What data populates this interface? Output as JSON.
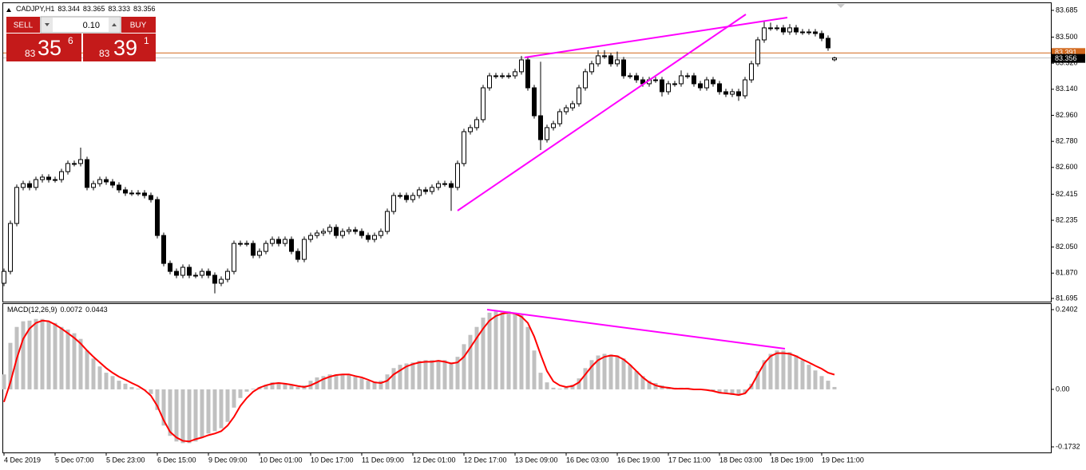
{
  "chart_data": [
    {
      "type": "candlestick",
      "title": "CADJPY,H1",
      "series": [
        {
          "color": "#000000",
          "open": [
            81.8,
            81.882,
            82.213,
            82.462,
            82.488,
            82.462,
            82.516,
            82.533,
            82.516,
            82.516,
            82.571,
            82.627,
            82.627,
            82.654,
            82.462,
            82.488,
            82.516,
            82.5,
            82.478,
            82.445,
            82.423,
            82.423,
            82.423,
            82.406,
            82.378,
            82.13,
            81.937,
            81.882,
            81.855,
            81.91,
            81.855,
            81.855,
            81.882,
            81.855,
            81.8,
            81.827,
            81.882,
            82.075,
            82.075,
            82.075,
            81.993,
            82.02,
            82.075,
            82.103,
            82.075,
            82.103,
            82.02,
            81.965,
            82.103,
            82.13,
            82.147,
            82.158,
            82.186,
            82.13,
            82.158,
            82.169,
            82.158,
            82.13,
            82.103,
            82.13,
            82.158,
            82.296,
            82.406,
            82.406,
            82.378,
            82.406,
            82.445,
            82.434,
            82.462,
            82.488,
            82.488,
            82.462,
            82.627,
            82.847,
            82.875,
            82.93,
            83.15,
            83.233,
            83.233,
            83.233,
            83.233,
            83.261,
            83.343,
            83.15,
            82.957,
            82.792,
            82.875,
            82.902,
            82.985,
            83.012,
            83.04,
            83.15,
            83.261,
            83.316,
            83.371,
            83.371,
            83.316,
            83.343,
            83.233,
            83.233,
            83.205,
            83.178,
            83.205,
            83.205,
            83.123,
            83.178,
            83.178,
            83.233,
            83.233,
            83.178,
            83.15,
            83.205,
            83.178,
            83.123,
            83.106,
            83.123,
            83.095,
            83.205,
            83.316,
            83.481,
            83.564,
            83.564,
            83.564,
            83.536,
            83.564,
            83.536,
            83.536,
            83.536,
            83.525,
            83.492,
            83.344
          ],
          "high": [
            81.902,
            82.233,
            82.482,
            82.508,
            82.508,
            82.536,
            82.553,
            82.553,
            82.536,
            82.591,
            82.647,
            82.647,
            82.737,
            82.674,
            82.508,
            82.536,
            82.536,
            82.52,
            82.498,
            82.465,
            82.443,
            82.443,
            82.443,
            82.426,
            82.398,
            82.15,
            81.957,
            81.902,
            81.93,
            81.93,
            81.875,
            81.902,
            81.902,
            81.875,
            81.847,
            81.902,
            82.095,
            82.095,
            82.095,
            82.095,
            82.04,
            82.095,
            82.123,
            82.123,
            82.123,
            82.123,
            82.04,
            82.123,
            82.15,
            82.167,
            82.178,
            82.206,
            82.206,
            82.178,
            82.189,
            82.189,
            82.178,
            82.15,
            82.15,
            82.178,
            82.316,
            82.426,
            82.426,
            82.426,
            82.426,
            82.465,
            82.465,
            82.482,
            82.508,
            82.508,
            82.508,
            82.647,
            82.867,
            82.895,
            82.95,
            83.17,
            83.253,
            83.253,
            83.253,
            83.253,
            83.281,
            83.37,
            83.363,
            83.17,
            83.33,
            82.895,
            82.922,
            83.005,
            83.032,
            83.06,
            83.17,
            83.281,
            83.336,
            83.41,
            83.41,
            83.391,
            83.4,
            83.363,
            83.253,
            83.253,
            83.225,
            83.225,
            83.225,
            83.225,
            83.198,
            83.198,
            83.27,
            83.253,
            83.253,
            83.198,
            83.225,
            83.225,
            83.198,
            83.143,
            83.143,
            83.143,
            83.225,
            83.336,
            83.501,
            83.61,
            83.6,
            83.584,
            83.584,
            83.59,
            83.584,
            83.556,
            83.556,
            83.556,
            83.545,
            83.512,
            83.365
          ],
          "low": [
            81.78,
            81.862,
            82.193,
            82.442,
            82.442,
            82.442,
            82.496,
            82.496,
            82.496,
            82.496,
            82.551,
            82.607,
            82.607,
            82.442,
            82.442,
            82.468,
            82.48,
            82.458,
            82.425,
            82.403,
            82.403,
            82.403,
            82.386,
            82.358,
            82.11,
            81.917,
            81.862,
            81.835,
            81.835,
            81.835,
            81.835,
            81.835,
            81.835,
            81.73,
            81.78,
            81.807,
            81.862,
            82.055,
            82.055,
            81.973,
            81.973,
            82.0,
            82.055,
            82.055,
            82.055,
            82.0,
            81.945,
            81.945,
            82.083,
            82.11,
            82.127,
            82.138,
            82.11,
            82.11,
            82.138,
            82.138,
            82.11,
            82.083,
            82.083,
            82.11,
            82.138,
            82.276,
            82.386,
            82.358,
            82.358,
            82.386,
            82.414,
            82.414,
            82.442,
            82.468,
            82.3,
            82.442,
            82.607,
            82.827,
            82.855,
            82.91,
            83.13,
            83.213,
            83.213,
            83.213,
            83.213,
            83.241,
            83.13,
            82.937,
            82.72,
            82.772,
            82.855,
            82.882,
            82.965,
            82.992,
            83.02,
            83.13,
            83.241,
            83.296,
            83.351,
            83.296,
            83.296,
            83.213,
            83.213,
            83.185,
            83.158,
            83.158,
            83.185,
            83.09,
            83.103,
            83.158,
            83.158,
            83.213,
            83.158,
            83.13,
            83.13,
            83.158,
            83.103,
            83.086,
            83.086,
            83.06,
            83.075,
            83.185,
            83.296,
            83.461,
            83.544,
            83.544,
            83.516,
            83.516,
            83.516,
            83.516,
            83.516,
            83.505,
            83.472,
            83.406,
            83.333
          ],
          "close": [
            81.882,
            82.213,
            82.462,
            82.488,
            82.462,
            82.516,
            82.533,
            82.516,
            82.516,
            82.571,
            82.627,
            82.627,
            82.654,
            82.462,
            82.488,
            82.516,
            82.5,
            82.478,
            82.445,
            82.423,
            82.423,
            82.423,
            82.406,
            82.378,
            82.13,
            81.937,
            81.882,
            81.855,
            81.91,
            81.855,
            81.855,
            81.882,
            81.855,
            81.8,
            81.827,
            81.882,
            82.075,
            82.075,
            82.075,
            81.993,
            82.02,
            82.075,
            82.103,
            82.075,
            82.103,
            82.02,
            81.965,
            82.103,
            82.13,
            82.147,
            82.158,
            82.186,
            82.13,
            82.158,
            82.169,
            82.158,
            82.13,
            82.103,
            82.13,
            82.158,
            82.296,
            82.406,
            82.406,
            82.378,
            82.406,
            82.445,
            82.434,
            82.462,
            82.488,
            82.488,
            82.462,
            82.627,
            82.847,
            82.875,
            82.93,
            83.15,
            83.233,
            83.233,
            83.233,
            83.233,
            83.261,
            83.343,
            83.15,
            82.957,
            82.792,
            82.875,
            82.902,
            82.985,
            83.012,
            83.04,
            83.15,
            83.261,
            83.316,
            83.371,
            83.371,
            83.316,
            83.343,
            83.233,
            83.233,
            83.205,
            83.178,
            83.205,
            83.205,
            83.123,
            83.178,
            83.178,
            83.233,
            83.233,
            83.178,
            83.15,
            83.205,
            83.178,
            83.123,
            83.106,
            83.123,
            83.095,
            83.205,
            83.316,
            83.481,
            83.564,
            83.564,
            83.564,
            83.536,
            83.564,
            83.536,
            83.536,
            83.536,
            83.525,
            83.492,
            83.426,
            83.356
          ]
        }
      ],
      "ask_line": {
        "value": 83.391,
        "color": "#d2691e"
      },
      "bid_line_color": "#c0c0c0",
      "ylim": [
        81.673,
        83.74
      ],
      "yticks": [
        83.685,
        {
          "value": 83.5,
          "label": "83.500"
        },
        {
          "value": 83.32,
          "label": "83.320"
        },
        {
          "value": 83.14,
          "label": "83.140"
        },
        {
          "value": 82.96,
          "label": "82.960"
        },
        {
          "value": 82.78,
          "label": "82.780"
        },
        {
          "value": 82.6,
          "label": "82.600"
        },
        82.415,
        82.235,
        {
          "value": 82.05,
          "label": "82.050"
        },
        {
          "value": 81.87,
          "label": "81.870"
        },
        81.695
      ],
      "grid": false
    },
    {
      "type": "macd",
      "title": "MACD(12,26,9)",
      "series": [
        {
          "kind": "histogram",
          "color": "#c0c0c0",
          "values": [
            0.045,
            0.14,
            0.188,
            0.205,
            0.207,
            0.212,
            0.212,
            0.205,
            0.2,
            0.188,
            0.18,
            0.169,
            0.152,
            0.117,
            0.093,
            0.069,
            0.05,
            0.04,
            0.026,
            0.017,
            0.007,
            0.002,
            -0.002,
            -0.014,
            -0.062,
            -0.109,
            -0.14,
            -0.157,
            -0.162,
            -0.162,
            -0.157,
            -0.145,
            -0.133,
            -0.126,
            -0.117,
            -0.098,
            -0.055,
            -0.026,
            -0.007,
            0.002,
            0.007,
            0.014,
            0.021,
            0.021,
            0.019,
            0.012,
            0.007,
            0.012,
            0.026,
            0.036,
            0.04,
            0.045,
            0.045,
            0.045,
            0.043,
            0.038,
            0.033,
            0.026,
            0.024,
            0.026,
            0.045,
            0.064,
            0.074,
            0.078,
            0.081,
            0.086,
            0.088,
            0.088,
            0.088,
            0.088,
            0.081,
            0.098,
            0.136,
            0.164,
            0.188,
            0.216,
            0.231,
            0.235,
            0.235,
            0.235,
            0.231,
            0.224,
            0.188,
            0.117,
            0.05,
            0.021,
            0.005,
            0.002,
            0.007,
            0.014,
            0.033,
            0.064,
            0.088,
            0.102,
            0.107,
            0.105,
            0.102,
            0.093,
            0.074,
            0.055,
            0.04,
            0.026,
            0.019,
            0.012,
            0.007,
            0.005,
            0.005,
            0.005,
            0.002,
            0,
            -0.002,
            -0.005,
            -0.01,
            -0.012,
            -0.017,
            -0.019,
            -0.012,
            0.017,
            0.055,
            0.088,
            0.107,
            0.117,
            0.117,
            0.112,
            0.102,
            0.088,
            0.074,
            0.057,
            0.04,
            0.026,
            0.0072
          ]
        },
        {
          "kind": "line",
          "color": "#ff0000",
          "values": [
            -0.038,
            0.021,
            0.093,
            0.152,
            0.183,
            0.2,
            0.207,
            0.205,
            0.195,
            0.183,
            0.169,
            0.155,
            0.138,
            0.117,
            0.098,
            0.081,
            0.064,
            0.05,
            0.038,
            0.029,
            0.019,
            0.01,
            -0.002,
            -0.019,
            -0.05,
            -0.093,
            -0.128,
            -0.145,
            -0.155,
            -0.157,
            -0.15,
            -0.145,
            -0.138,
            -0.133,
            -0.126,
            -0.109,
            -0.083,
            -0.05,
            -0.026,
            -0.007,
            0.005,
            0.012,
            0.017,
            0.019,
            0.017,
            0.014,
            0.01,
            0.007,
            0.012,
            0.021,
            0.031,
            0.038,
            0.043,
            0.045,
            0.045,
            0.04,
            0.036,
            0.029,
            0.021,
            0.019,
            0.026,
            0.045,
            0.057,
            0.069,
            0.076,
            0.081,
            0.083,
            0.083,
            0.086,
            0.083,
            0.078,
            0.081,
            0.098,
            0.126,
            0.155,
            0.183,
            0.207,
            0.221,
            0.228,
            0.231,
            0.228,
            0.219,
            0.2,
            0.159,
            0.105,
            0.055,
            0.024,
            0.012,
            0.007,
            0.01,
            0.021,
            0.045,
            0.069,
            0.088,
            0.098,
            0.102,
            0.1,
            0.09,
            0.074,
            0.055,
            0.036,
            0.021,
            0.012,
            0.007,
            0.005,
            0.002,
            0.002,
            0.002,
            0,
            0,
            -0.002,
            -0.005,
            -0.01,
            -0.012,
            -0.014,
            -0.017,
            -0.012,
            0.01,
            0.045,
            0.078,
            0.1,
            0.109,
            0.109,
            0.107,
            0.1,
            0.09,
            0.081,
            0.071,
            0.062,
            0.05,
            0.0443
          ]
        }
      ],
      "ylim": [
        -0.19,
        0.257
      ],
      "yticks": [
        0.2402,
        {
          "value": 0,
          "label": "0.00"
        },
        -0.1732
      ],
      "xticks": [
        {
          "value": 0,
          "label": "4 Dec 2019"
        },
        {
          "value": 8,
          "label": "5 Dec 07:00"
        },
        {
          "value": 16,
          "label": "5 Dec 23:00"
        },
        {
          "value": 24,
          "label": "6 Dec 15:00"
        },
        {
          "value": 32,
          "label": "9 Dec 09:00"
        },
        {
          "value": 40,
          "label": "10 Dec 01:00"
        },
        {
          "value": 48,
          "label": "10 Dec 17:00"
        },
        {
          "value": 56,
          "label": "11 Dec 09:00"
        },
        {
          "value": 64,
          "label": "12 Dec 01:00"
        },
        {
          "value": 72,
          "label": "12 Dec 17:00"
        },
        {
          "value": 80,
          "label": "13 Dec 09:00"
        },
        {
          "value": 88,
          "label": "16 Dec 03:00"
        },
        {
          "value": 96,
          "label": "16 Dec 19:00"
        },
        {
          "value": 104,
          "label": "17 Dec 11:00"
        },
        {
          "value": 112,
          "label": "18 Dec 03:00"
        },
        {
          "value": 120,
          "label": "18 Dec 19:00"
        },
        {
          "value": 128,
          "label": "19 Dec 11:00"
        }
      ]
    }
  ],
  "trade_panel": {
    "sell": "SELL",
    "buy": "BUY",
    "lot": "0.10",
    "sell_price": {
      "big": "83",
      "main": "35",
      "pip": "6"
    },
    "buy_price": {
      "big": "83",
      "main": "39",
      "pip": "1"
    }
  }
}
